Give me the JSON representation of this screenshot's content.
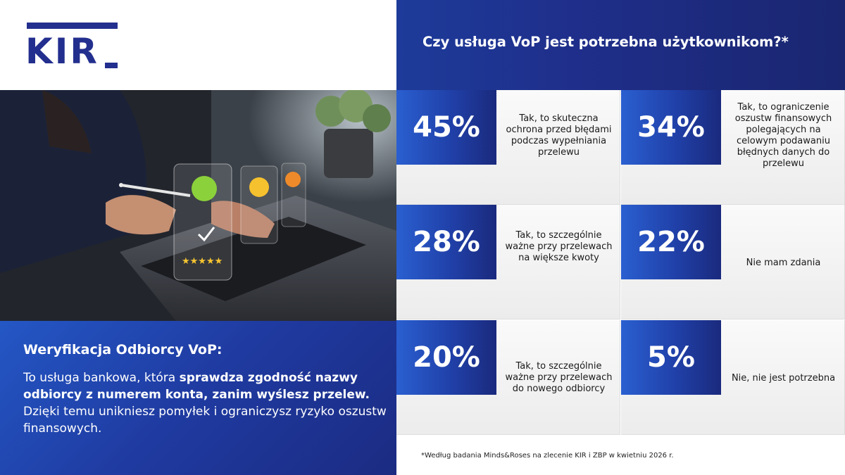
{
  "logo": {
    "text": "KIR"
  },
  "header": {
    "question": "Czy usługa VoP jest potrzebna użytkownikom?*"
  },
  "info": {
    "title": "Weryfikacja Odbiorcy VoP:",
    "text_1": "To usługa bankowa, która ",
    "text_bold": "sprawdza zgodność nazwy odbiorcy z numerem konta, zanim wyślesz przelew.",
    "text_2": " Dzięki temu unikniesz pomyłek i ograniczysz ryzyko oszustw finansowych."
  },
  "stats": [
    {
      "pct": "45%",
      "desc": "Tak, to skuteczna ochrona przed błędami podczas wypełniania przelewu"
    },
    {
      "pct": "34%",
      "desc": "Tak, to ograniczenie oszustw finansowych polegających na celowym podawaniu błędnych danych do przelewu"
    },
    {
      "pct": "28%",
      "desc": "Tak, to szczególnie ważne przy przelewach na większe kwoty"
    },
    {
      "pct": "22%",
      "desc": "Nie mam zdania"
    },
    {
      "pct": "20%",
      "desc": "Tak, to szczególnie ważne przy przelewach do nowego odbiorcy"
    },
    {
      "pct": "5%",
      "desc": "Nie, nie jest potrzebna"
    }
  ],
  "footnote": "*Według badania Minds&Roses na zlecenie KIR i ZBP w kwietniu 2026 r.",
  "colors": {
    "brand": "#232f8e",
    "accent": "#2457c5"
  },
  "photo": {
    "rating_stars": "★★★★★"
  }
}
